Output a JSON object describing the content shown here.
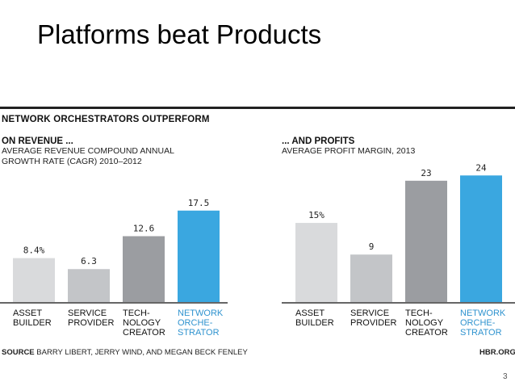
{
  "slide": {
    "title": "Platforms beat Products",
    "page_number": "3"
  },
  "figure": {
    "title": "NETWORK ORCHESTRATORS OUTPERFORM",
    "source_label": "SOURCE",
    "source_text": "BARRY LIBERT, JERRY WIND, AND MEGAN BECK FENLEY",
    "credit": "HBR.ORG"
  },
  "chart_data": [
    {
      "type": "bar",
      "title": "ON REVENUE ...",
      "subtitle_lines": [
        "AVERAGE REVENUE COMPOUND ANNUAL",
        "GROWTH RATE (CAGR) 2010–2012"
      ],
      "categories": [
        [
          "ASSET",
          "BUILDER"
        ],
        [
          "SERVICE",
          "PROVIDER"
        ],
        [
          "TECH-",
          "NOLOGY",
          "CREATOR"
        ],
        [
          "NETWORK",
          "ORCHE-",
          "STRATOR"
        ]
      ],
      "values": [
        8.4,
        6.3,
        12.6,
        17.5
      ],
      "value_labels": [
        "8.4%",
        "6.3",
        "12.6",
        "17.5"
      ],
      "colors": [
        "#d9dadc",
        "#c3c5c8",
        "#9b9da1",
        "#3aa7e0"
      ],
      "category_label_colors": [
        "#111111",
        "#111111",
        "#111111",
        "#2f93cf"
      ],
      "grid": false,
      "legend": "none"
    },
    {
      "type": "bar",
      "title": "... AND PROFITS",
      "subtitle_lines": [
        "AVERAGE PROFIT MARGIN, 2013"
      ],
      "categories": [
        [
          "ASSET",
          "BUILDER"
        ],
        [
          "SERVICE",
          "PROVIDER"
        ],
        [
          "TECH-",
          "NOLOGY",
          "CREATOR"
        ],
        [
          "NETWORK",
          "ORCHE-",
          "STRATOR"
        ]
      ],
      "values": [
        15,
        9,
        23,
        24
      ],
      "value_labels": [
        "15%",
        "9",
        "23",
        "24"
      ],
      "colors": [
        "#d9dadc",
        "#c3c5c8",
        "#9b9da1",
        "#3aa7e0"
      ],
      "category_label_colors": [
        "#111111",
        "#111111",
        "#111111",
        "#2f93cf"
      ],
      "grid": false,
      "legend": "none"
    }
  ]
}
